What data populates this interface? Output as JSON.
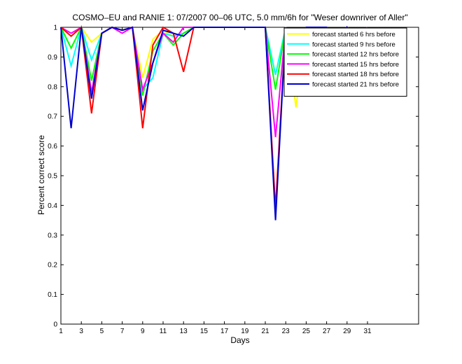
{
  "chart_data": {
    "type": "line",
    "title": "COSMO–EU and RANIE 1: 07/2007 00–06 UTC, 5.0 mm/6h for \"Weser downriver of Aller\"",
    "xlabel": "Days",
    "ylabel": "Percent correct score",
    "xlim": [
      1,
      36
    ],
    "ylim": [
      0,
      1
    ],
    "x_ticks": [
      1,
      3,
      5,
      7,
      9,
      11,
      13,
      15,
      17,
      19,
      21,
      23,
      25,
      27,
      29,
      31
    ],
    "y_ticks": [
      0,
      0.1,
      0.2,
      0.3,
      0.4,
      0.5,
      0.6,
      0.7,
      0.8,
      0.9,
      1
    ],
    "y_tick_labels": [
      "0",
      "0.1",
      "0.2",
      "0.3",
      "0.4",
      "0.5",
      "0.6",
      "0.7",
      "0.8",
      "0.9",
      "1"
    ],
    "grid": false,
    "legend_position": "top-right",
    "x": [
      1,
      2,
      3,
      4,
      5,
      6,
      7,
      8,
      9,
      10,
      11,
      12,
      13,
      14,
      15,
      16,
      17,
      18,
      19,
      20,
      21,
      22,
      23,
      24,
      25,
      26,
      27,
      28,
      29,
      30,
      31
    ],
    "series": [
      {
        "name": "forecast started 6 hrs before",
        "color": "#ffff00",
        "values": [
          1,
          0.97,
          1,
          0.95,
          0.98,
          1,
          0.99,
          1,
          0.83,
          0.96,
          0.99,
          0.97,
          0.98,
          1,
          1,
          1,
          1,
          1,
          1,
          1,
          1,
          0.84,
          1,
          0.73,
          1,
          1,
          1,
          0.86,
          1,
          0.97,
          1
        ]
      },
      {
        "name": "forecast started 9 hrs before",
        "color": "#00ffff",
        "values": [
          1,
          0.87,
          1,
          0.89,
          0.98,
          1,
          0.99,
          1,
          0.79,
          0.83,
          0.98,
          0.97,
          0.98,
          1,
          1,
          1,
          1,
          1,
          1,
          1,
          1,
          0.84,
          1,
          0.86,
          1,
          1,
          1,
          0.8,
          1,
          0.96,
          1
        ]
      },
      {
        "name": "forecast started 12 hrs before",
        "color": "#00ff00",
        "values": [
          1,
          0.93,
          1,
          0.82,
          0.98,
          1,
          0.99,
          1,
          0.77,
          0.92,
          0.98,
          0.94,
          0.98,
          1,
          1,
          1,
          1,
          1,
          1,
          1,
          1,
          0.79,
          1,
          0.82,
          1,
          1,
          0.98,
          0.82,
          1,
          0.97,
          1
        ]
      },
      {
        "name": "forecast started 15 hrs before",
        "color": "#ff00ff",
        "values": [
          1,
          0.98,
          1,
          0.78,
          0.98,
          1,
          0.98,
          1,
          0.79,
          0.88,
          0.98,
          0.95,
          1,
          1,
          1,
          1,
          1,
          1,
          1,
          1,
          1,
          0.63,
          1,
          0.86,
          1,
          1,
          1,
          0.85,
          1,
          0.97,
          1
        ]
      },
      {
        "name": "forecast started 18 hrs before",
        "color": "#ff0000",
        "values": [
          1,
          0.97,
          1,
          0.71,
          0.98,
          1,
          0.99,
          1,
          0.66,
          0.94,
          1,
          0.98,
          0.85,
          1,
          1,
          1,
          1,
          1,
          1,
          1,
          1,
          0.39,
          1,
          0.78,
          1,
          1,
          1,
          0.88,
          1,
          0.97,
          1
        ]
      },
      {
        "name": "forecast started 21 hrs before",
        "color": "#0000cc",
        "values": [
          1,
          0.66,
          1,
          0.76,
          0.98,
          1,
          0.99,
          1,
          0.72,
          0.88,
          0.99,
          0.98,
          0.97,
          1,
          1,
          1,
          1,
          1,
          1,
          1,
          1,
          0.35,
          1,
          0.84,
          1,
          1,
          1,
          0.9,
          1,
          0.96,
          1
        ]
      }
    ]
  }
}
